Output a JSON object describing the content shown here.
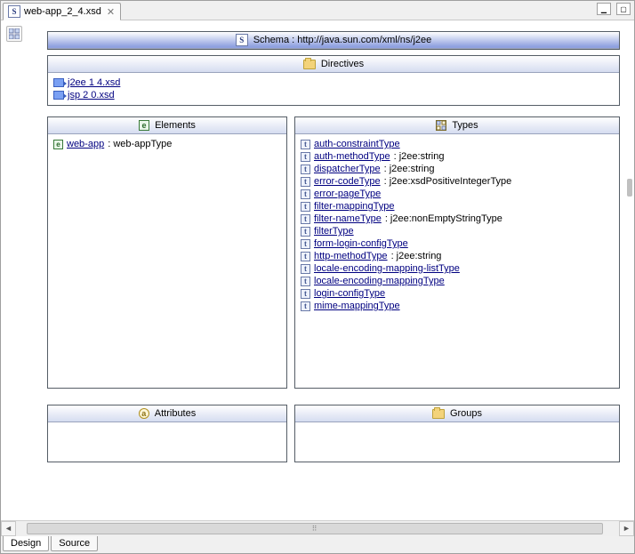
{
  "tab": {
    "filename": "web-app_2_4.xsd",
    "close_glyph": "✕"
  },
  "win": {
    "min_glyph": "▁",
    "max_glyph": "▢"
  },
  "schema": {
    "icon_letter": "S",
    "label": "Schema : http://java.sun.com/xml/ns/j2ee"
  },
  "directives": {
    "title": "Directives",
    "items": [
      {
        "label": "j2ee 1 4.xsd"
      },
      {
        "label": "jsp 2 0.xsd"
      }
    ]
  },
  "elements": {
    "title": "Elements",
    "icon_letter": "e",
    "items": [
      {
        "name": "web-app",
        "type_suffix": " : web-appType"
      }
    ]
  },
  "types": {
    "title": "Types",
    "icon_letter": "t",
    "items": [
      {
        "name": "auth-constraintType",
        "type_suffix": ""
      },
      {
        "name": "auth-methodType",
        "type_suffix": " : j2ee:string"
      },
      {
        "name": "dispatcherType",
        "type_suffix": " : j2ee:string"
      },
      {
        "name": "error-codeType",
        "type_suffix": " : j2ee:xsdPositiveIntegerType"
      },
      {
        "name": "error-pageType",
        "type_suffix": ""
      },
      {
        "name": "filter-mappingType",
        "type_suffix": ""
      },
      {
        "name": "filter-nameType",
        "type_suffix": " : j2ee:nonEmptyStringType"
      },
      {
        "name": "filterType",
        "type_suffix": ""
      },
      {
        "name": "form-login-configType",
        "type_suffix": ""
      },
      {
        "name": "http-methodType",
        "type_suffix": " : j2ee:string"
      },
      {
        "name": "locale-encoding-mapping-listType",
        "type_suffix": ""
      },
      {
        "name": "locale-encoding-mappingType",
        "type_suffix": ""
      },
      {
        "name": "login-configType",
        "type_suffix": ""
      },
      {
        "name": "mime-mappingType",
        "type_suffix": ""
      }
    ]
  },
  "attributes": {
    "title": "Attributes",
    "icon_letter": "a"
  },
  "groups": {
    "title": "Groups"
  },
  "modes": {
    "design": "Design",
    "source": "Source"
  },
  "scroll": {
    "left_glyph": "◄",
    "right_glyph": "►",
    "thumb_glyph": "⠿"
  }
}
